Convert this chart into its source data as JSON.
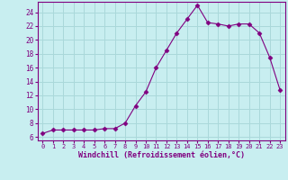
{
  "x": [
    0,
    1,
    2,
    3,
    4,
    5,
    6,
    7,
    8,
    9,
    10,
    11,
    12,
    13,
    14,
    15,
    16,
    17,
    18,
    19,
    20,
    21,
    22,
    23
  ],
  "y": [
    6.5,
    7.0,
    7.0,
    7.0,
    7.0,
    7.0,
    7.2,
    7.2,
    8.0,
    10.5,
    12.5,
    16.0,
    18.5,
    21.0,
    23.0,
    25.0,
    22.5,
    22.3,
    22.0,
    22.3,
    22.3,
    21.0,
    17.5,
    12.8
  ],
  "line_color": "#800080",
  "marker": "D",
  "marker_size": 2.5,
  "bg_color": "#c8eef0",
  "grid_color": "#aad8da",
  "xlabel": "Windchill (Refroidissement éolien,°C)",
  "xlabel_color": "#800080",
  "tick_color": "#800080",
  "yticks": [
    6,
    8,
    10,
    12,
    14,
    16,
    18,
    20,
    22,
    24
  ],
  "xticks": [
    0,
    1,
    2,
    3,
    4,
    5,
    6,
    7,
    8,
    9,
    10,
    11,
    12,
    13,
    14,
    15,
    16,
    17,
    18,
    19,
    20,
    21,
    22,
    23
  ],
  "ylim": [
    5.5,
    25.5
  ],
  "xlim": [
    -0.5,
    23.5
  ]
}
